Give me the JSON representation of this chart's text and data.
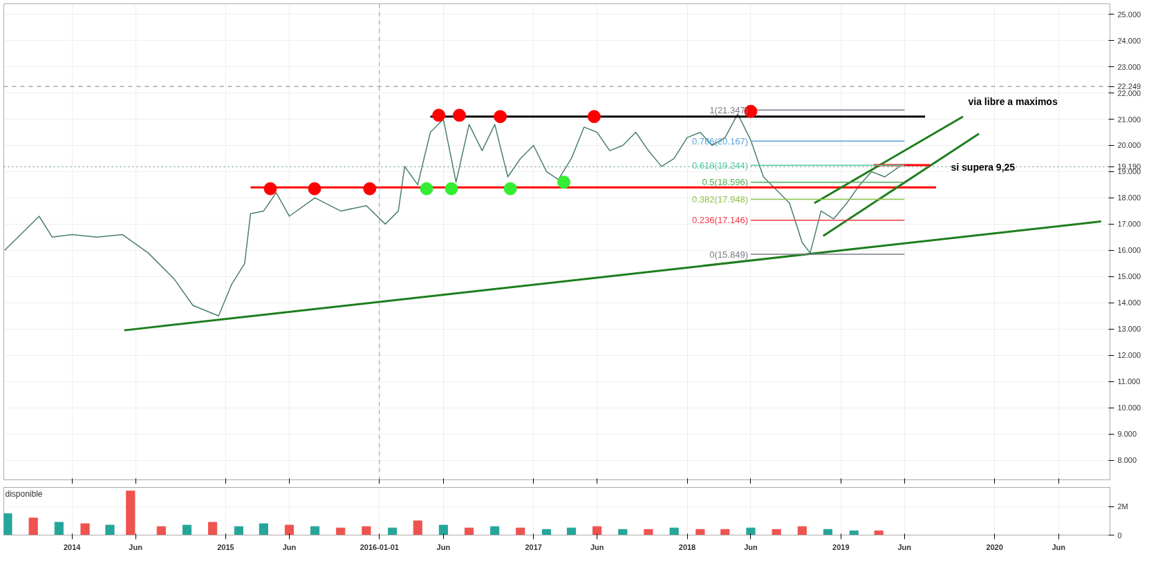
{
  "chart_data": [
    {
      "type": "line",
      "xlim": [
        "2013-07-23",
        "2020-10-01"
      ],
      "ylim": [
        7.25,
        25.4
      ],
      "xticks": [
        {
          "value": "2014-01-01",
          "label": null
        },
        {
          "value": "2014-06-01",
          "label": null
        },
        {
          "value": "2015-01-01",
          "label": null
        },
        {
          "value": "2015-06-01",
          "label": null
        },
        {
          "value": "2016-01-01",
          "label": null
        },
        {
          "value": "2016-06-01",
          "label": null
        },
        {
          "value": "2017-01-01",
          "label": null
        },
        {
          "value": "2017-06-01",
          "label": null
        },
        {
          "value": "2018-01-01",
          "label": null
        },
        {
          "value": "2018-06-01",
          "label": null
        },
        {
          "value": "2019-01-01",
          "label": null
        },
        {
          "value": "2019-06-01",
          "label": null
        },
        {
          "value": "2020-01-01",
          "label": null
        },
        {
          "value": "2020-06-01",
          "label": null
        }
      ],
      "yticks": [
        {
          "value": 8,
          "label": "8.000"
        },
        {
          "value": 9,
          "label": "9.000"
        },
        {
          "value": 10,
          "label": "10.000"
        },
        {
          "value": 11,
          "label": "11.000"
        },
        {
          "value": 12,
          "label": "12.000"
        },
        {
          "value": 13,
          "label": "13.000"
        },
        {
          "value": 14,
          "label": "14.000"
        },
        {
          "value": 15,
          "label": "15.000"
        },
        {
          "value": 16,
          "label": "16.000"
        },
        {
          "value": 17,
          "label": "17.000"
        },
        {
          "value": 18,
          "label": "18.000"
        },
        {
          "value": 19,
          "label": "19.000"
        },
        {
          "value": 20,
          "label": "20.000"
        },
        {
          "value": 21,
          "label": "21.000"
        },
        {
          "value": 22,
          "label": "22.000"
        },
        {
          "value": 23,
          "label": "23.000"
        },
        {
          "value": 24,
          "label": "24.000"
        },
        {
          "value": 25,
          "label": "25.000"
        }
      ],
      "grid": true,
      "tick_labels": "y",
      "series": [
        {
          "type": "line",
          "color": "#4a7f6a",
          "x": [
            "2013-07-25",
            "2013-09-01",
            "2013-10-15",
            "2013-11-15",
            "2014-01-01",
            "2014-03-01",
            "2014-05-01",
            "2014-07-01",
            "2014-09-01",
            "2014-10-15",
            "2014-12-15",
            "2015-01-15",
            "2015-02-15",
            "2015-03-01",
            "2015-04-01",
            "2015-05-01",
            "2015-06-01",
            "2015-08-01",
            "2015-10-01",
            "2015-12-01",
            "2016-01-15",
            "2016-02-15",
            "2016-03-01",
            "2016-04-01",
            "2016-05-01",
            "2016-06-01",
            "2016-07-01",
            "2016-08-01",
            "2016-09-01",
            "2016-10-01",
            "2016-11-01",
            "2016-12-01",
            "2017-01-01",
            "2017-02-01",
            "2017-03-01",
            "2017-04-01",
            "2017-05-01",
            "2017-06-01",
            "2017-07-01",
            "2017-08-01",
            "2017-09-01",
            "2017-10-01",
            "2017-11-01",
            "2017-12-01",
            "2018-01-01",
            "2018-02-01",
            "2018-03-01",
            "2018-04-01",
            "2018-05-01",
            "2018-06-01",
            "2018-07-01",
            "2018-08-01",
            "2018-09-01",
            "2018-10-01",
            "2018-10-20",
            "2018-11-15",
            "2018-12-15",
            "2019-01-15",
            "2019-02-15",
            "2019-03-15",
            "2019-04-15",
            "2019-05-20"
          ],
          "values": [
            16.0,
            16.6,
            17.3,
            16.5,
            16.6,
            16.5,
            16.6,
            15.9,
            14.9,
            13.9,
            13.5,
            14.7,
            15.5,
            17.4,
            17.5,
            18.2,
            17.3,
            18.0,
            17.5,
            17.7,
            17.0,
            17.5,
            19.2,
            18.5,
            20.5,
            21.0,
            18.6,
            20.8,
            19.8,
            20.8,
            18.8,
            19.5,
            20.0,
            19.0,
            18.7,
            19.5,
            20.7,
            20.5,
            19.8,
            20.0,
            20.5,
            19.8,
            19.2,
            19.5,
            20.3,
            20.5,
            20.0,
            20.3,
            21.2,
            20.2,
            18.8,
            18.3,
            17.8,
            16.3,
            15.9,
            17.5,
            17.2,
            17.8,
            18.5,
            19.0,
            18.8,
            19.19
          ]
        },
        {
          "type": "line",
          "color": "#000000",
          "x": [
            "2016-05-01",
            "2019-07-20"
          ],
          "values": [
            21.1,
            21.1
          ]
        },
        {
          "type": "line",
          "color": "#ff0000",
          "x": [
            "2015-03-01",
            "2019-08-15"
          ],
          "values": [
            18.4,
            18.4
          ]
        },
        {
          "type": "line",
          "color": "#1e7d1e",
          "x": [
            "2014-05-05",
            "2020-09-10"
          ],
          "values": [
            12.95,
            17.1
          ]
        },
        {
          "type": "line",
          "color": "#1e7d1e",
          "x": [
            "2018-10-30",
            "2019-10-18"
          ],
          "values": [
            17.8,
            21.1
          ]
        },
        {
          "type": "line",
          "color": "#1e7d1e",
          "x": [
            "2018-11-20",
            "2019-11-25"
          ],
          "values": [
            16.55,
            20.45
          ]
        },
        {
          "type": "line",
          "color": "#ff0000",
          "x": [
            "2019-03-20",
            "2019-08-01"
          ],
          "values": [
            19.25,
            19.25
          ]
        },
        {
          "type": "line",
          "name": "1(21.347)",
          "color": "#787b86",
          "x": [
            "2018-06-01",
            "2019-06-01"
          ],
          "values": [
            21.347,
            21.347
          ]
        },
        {
          "type": "line",
          "name": "0.786(20.167)",
          "color": "#5aa5d8",
          "x": [
            "2018-06-01",
            "2019-06-01"
          ],
          "values": [
            20.167,
            20.167
          ]
        },
        {
          "type": "line",
          "name": "0.618(19.244)",
          "color": "#4cc9a3",
          "x": [
            "2018-06-01",
            "2019-06-01"
          ],
          "values": [
            19.244,
            19.244
          ]
        },
        {
          "type": "line",
          "name": "0.5(18.596)",
          "color": "#4caf50",
          "x": [
            "2018-06-01",
            "2019-06-01"
          ],
          "values": [
            18.596,
            18.596
          ]
        },
        {
          "type": "line",
          "name": "0.382(17.948)",
          "color": "#8bc34a",
          "x": [
            "2018-06-01",
            "2019-06-01"
          ],
          "values": [
            17.948,
            17.948
          ]
        },
        {
          "type": "line",
          "name": "0.236(17.146)",
          "color": "#f23645",
          "x": [
            "2018-06-01",
            "2019-06-01"
          ],
          "values": [
            17.146,
            17.146
          ]
        },
        {
          "type": "line",
          "name": "0(15.849)",
          "color": "#787b86",
          "x": [
            "2018-06-01",
            "2019-06-01"
          ],
          "values": [
            15.849,
            15.849
          ]
        },
        {
          "type": "scatter",
          "color": "#ff0000",
          "x": [
            "2015-04-17",
            "2015-07-31",
            "2015-12-09",
            "2016-05-21",
            "2016-07-09",
            "2016-10-14",
            "2017-05-25",
            "2018-06-01"
          ],
          "values": [
            18.35,
            18.35,
            18.35,
            21.15,
            21.15,
            21.1,
            21.1,
            21.3
          ]
        },
        {
          "type": "scatter",
          "color": "#33ee33",
          "x": [
            "2016-04-22",
            "2016-06-20",
            "2016-11-07",
            "2017-03-14"
          ],
          "values": [
            18.35,
            18.35,
            18.35,
            18.6
          ]
        }
      ],
      "ref_lines": [
        {
          "axis": "y",
          "value": 22.249,
          "label": "22.249",
          "color": "#787b86",
          "line_style": "dashed"
        },
        {
          "axis": "y",
          "value": 19.19,
          "label": "19.190",
          "color": "#4a7f6a",
          "line_style": "dotted"
        },
        {
          "axis": "x",
          "value": "2016-01-01",
          "color": "#9598a1",
          "line_style": "dashed"
        }
      ],
      "annotations": [
        "via libre a maximos",
        "si supera 9,25"
      ]
    },
    {
      "type": "bar",
      "xlim": [
        "2013-07-23",
        "2020-10-01"
      ],
      "ylim": [
        0,
        3350000
      ],
      "yticks": [
        {
          "value": 0,
          "label": "0"
        },
        {
          "value": 2000000,
          "label": "2M"
        }
      ],
      "xticks": [
        {
          "value": "2014-01-01",
          "label": "2014"
        },
        {
          "value": "2014-06-01",
          "label": "Jun"
        },
        {
          "value": "2015-01-01",
          "label": "2015"
        },
        {
          "value": "2015-06-01",
          "label": "Jun"
        },
        {
          "value": "2016-01-01",
          "label": "2016-01-01"
        },
        {
          "value": "2016-06-01",
          "label": "Jun"
        },
        {
          "value": "2017-01-01",
          "label": "2017"
        },
        {
          "value": "2017-06-01",
          "label": "Jun"
        },
        {
          "value": "2018-01-01",
          "label": "2018"
        },
        {
          "value": "2018-06-01",
          "label": "Jun"
        },
        {
          "value": "2019-01-01",
          "label": "2019"
        },
        {
          "value": "2019-06-01",
          "label": "Jun"
        },
        {
          "value": "2020-01-01",
          "label": "2020"
        },
        {
          "value": "2020-06-01",
          "label": "Jun"
        }
      ],
      "grid": true,
      "x": [
        "2013-08-01",
        "2013-10-01",
        "2013-12-01",
        "2014-02-01",
        "2014-04-01",
        "2014-05-20",
        "2014-08-01",
        "2014-10-01",
        "2014-12-01",
        "2015-02-01",
        "2015-04-01",
        "2015-06-01",
        "2015-08-01",
        "2015-10-01",
        "2015-12-01",
        "2016-02-01",
        "2016-04-01",
        "2016-06-01",
        "2016-08-01",
        "2016-10-01",
        "2016-12-01",
        "2017-02-01",
        "2017-04-01",
        "2017-06-01",
        "2017-08-01",
        "2017-10-01",
        "2017-12-01",
        "2018-02-01",
        "2018-04-01",
        "2018-06-01",
        "2018-08-01",
        "2018-10-01",
        "2018-12-01",
        "2019-02-01",
        "2019-04-01"
      ],
      "values": [
        1500000,
        1200000,
        900000,
        800000,
        700000,
        3100000,
        600000,
        700000,
        900000,
        600000,
        800000,
        700000,
        600000,
        500000,
        600000,
        500000,
        1000000,
        700000,
        500000,
        600000,
        500000,
        400000,
        500000,
        600000,
        400000,
        400000,
        500000,
        400000,
        400000,
        500000,
        400000,
        600000,
        400000,
        300000,
        300000
      ],
      "colors": [
        "#26a69a",
        "#ef5350",
        "#26a69a",
        "#ef5350",
        "#26a69a",
        "#ef5350",
        "#ef5350",
        "#26a69a",
        "#ef5350",
        "#26a69a",
        "#26a69a",
        "#ef5350",
        "#26a69a",
        "#ef5350",
        "#ef5350",
        "#26a69a",
        "#ef5350",
        "#26a69a",
        "#ef5350",
        "#26a69a",
        "#ef5350",
        "#26a69a",
        "#26a69a",
        "#ef5350",
        "#26a69a",
        "#ef5350",
        "#26a69a",
        "#ef5350",
        "#ef5350",
        "#26a69a",
        "#ef5350",
        "#ef5350",
        "#26a69a",
        "#26a69a",
        "#ef5350"
      ],
      "annotations": [
        "disponible"
      ]
    }
  ]
}
